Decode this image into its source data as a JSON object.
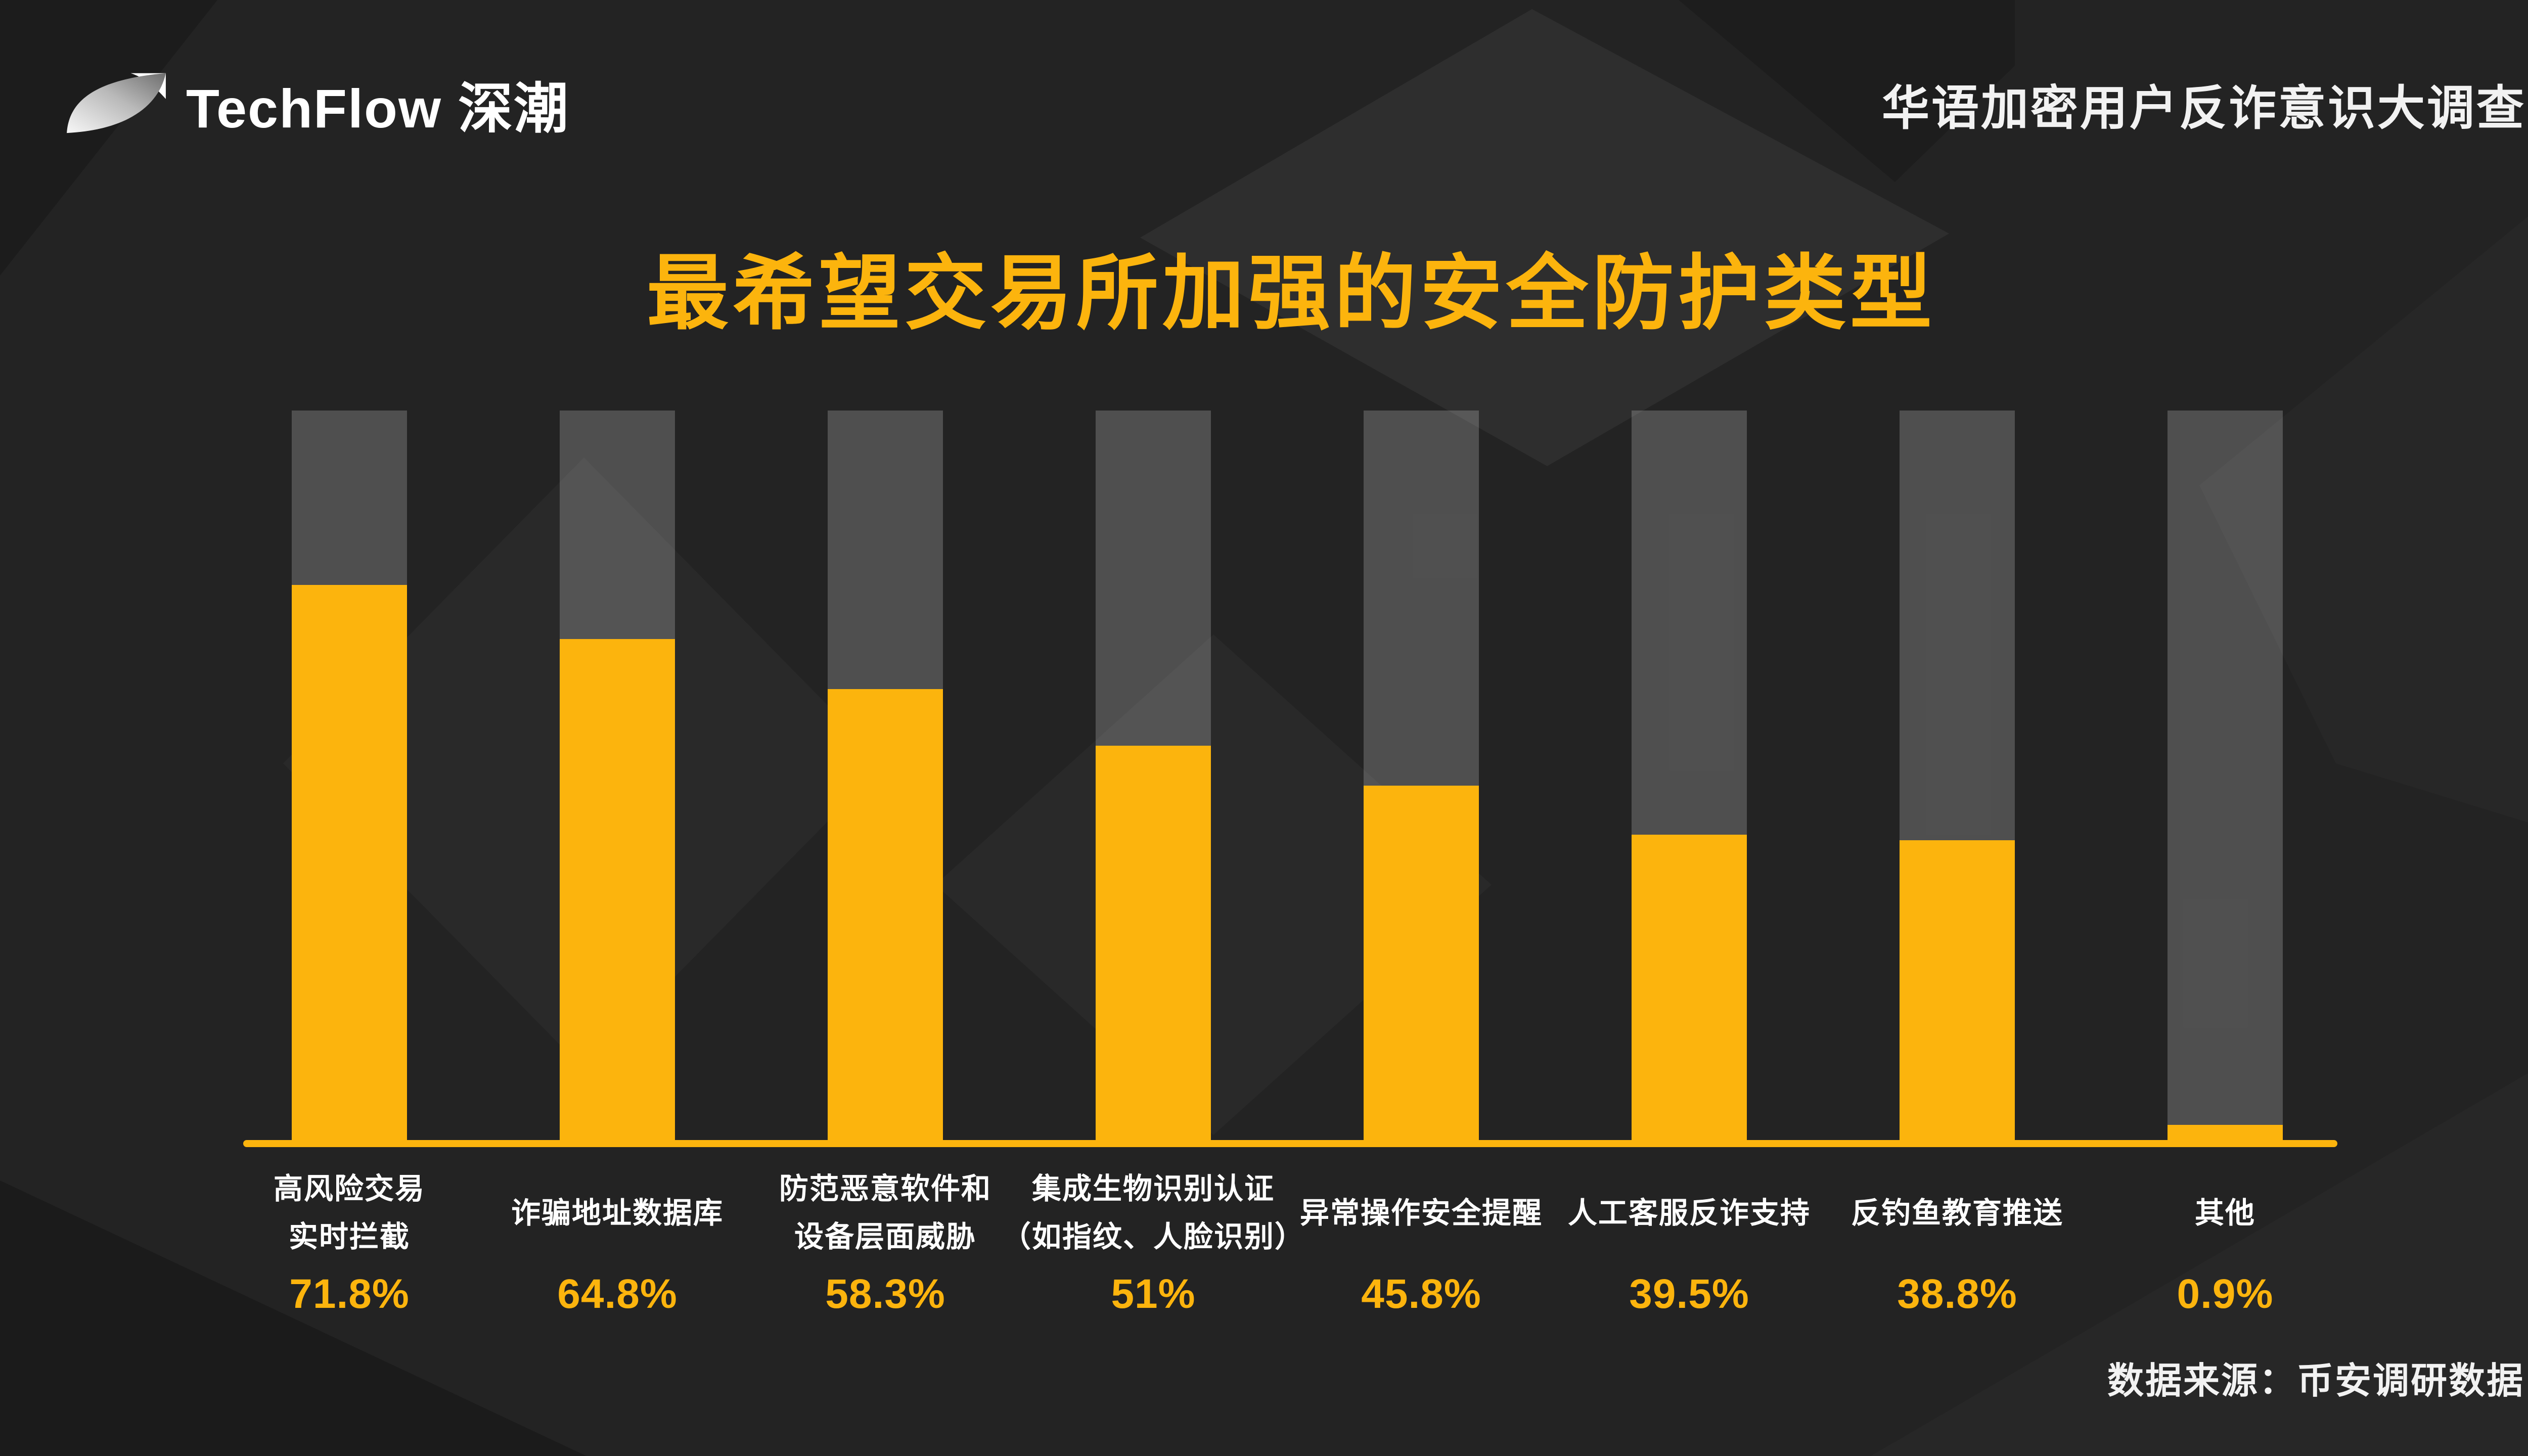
{
  "header": {
    "logo_text": "TechFlow 深潮",
    "survey_title": "华语加密用户反诈意识大调查"
  },
  "title": "最希望交易所加强的安全防护类型",
  "source": "数据来源：币安调研数据",
  "colors": {
    "accent": "#FCB40D",
    "bar_fill": "#FCB40D",
    "bar_track": "#595959",
    "background": "#232323",
    "text": "#FFFFFF"
  },
  "icons": {
    "logo_mark": "techflow-leaf"
  },
  "chart_data": {
    "type": "bar",
    "title": "最希望交易所加强的安全防护类型",
    "categories": [
      "高风险交易\n实时拦截",
      "诈骗地址数据库",
      "防范恶意软件和\n设备层面威胁",
      "集成生物识别认证\n（如指纹、人脸识别）",
      "异常操作安全提醒",
      "人工客服反诈支持",
      "反钓鱼教育推送",
      "其他"
    ],
    "values": [
      71.8,
      64.8,
      58.3,
      51,
      45.8,
      39.5,
      38.8,
      0.9
    ],
    "value_labels": [
      "71.8%",
      "64.8%",
      "58.3%",
      "51%",
      "45.8%",
      "39.5%",
      "38.8%",
      "0.9%"
    ],
    "xlabel": "",
    "ylabel": "",
    "ylim": [
      0,
      100
    ],
    "grid": false,
    "legend": null,
    "bar_color": "#FCB40D",
    "track_color": "#595959",
    "orientation": "vertical",
    "source": "数据来源：币安调研数据"
  }
}
